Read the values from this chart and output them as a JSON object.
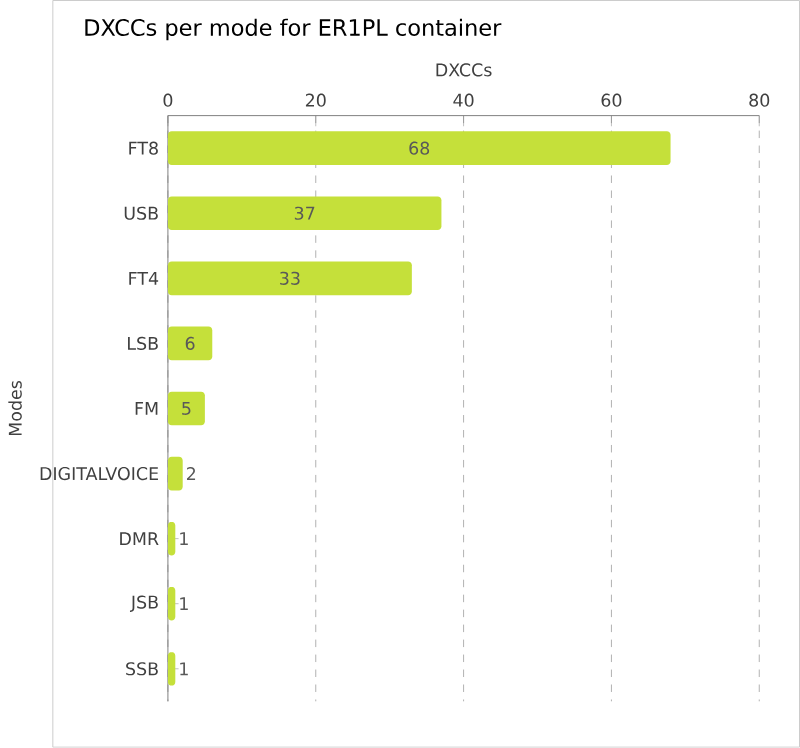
{
  "chart_data": {
    "type": "bar",
    "orientation": "horizontal",
    "title": "DXCCs per mode for ER1PL container",
    "xlabel": "DXCCs",
    "ylabel": "Modes",
    "categories": [
      "FT8",
      "USB",
      "FT4",
      "LSB",
      "FM",
      "DIGITALVOICE",
      "DMR",
      "JSB",
      "SSB"
    ],
    "values": [
      68,
      37,
      33,
      6,
      5,
      2,
      1,
      1,
      1
    ],
    "color": "#c5e03a",
    "xlim": [
      0,
      80
    ],
    "xticks": [
      0,
      20,
      40,
      60,
      80
    ],
    "grid": "x",
    "data_labels": true
  }
}
